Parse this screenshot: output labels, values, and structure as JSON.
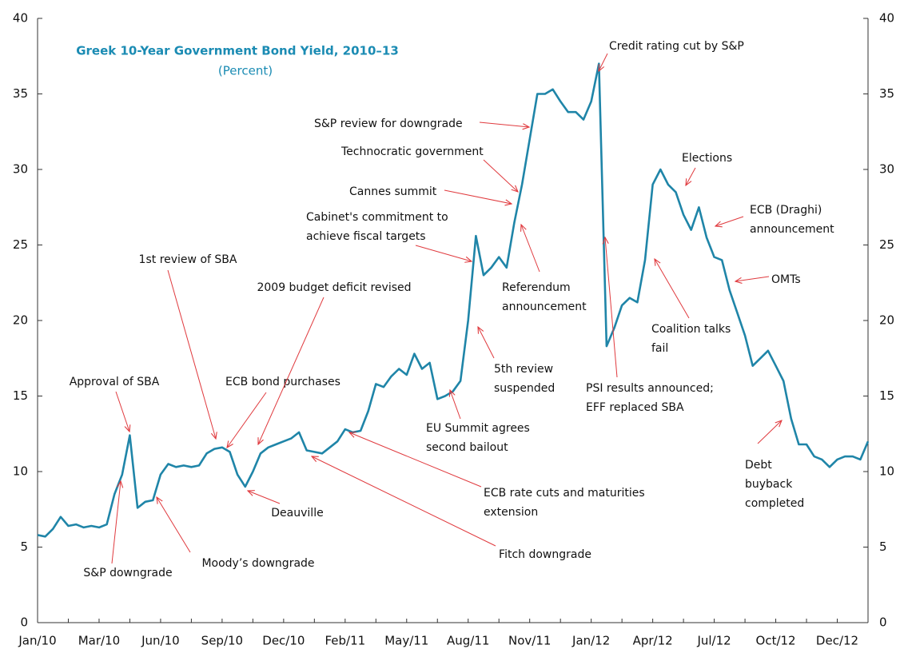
{
  "chart_data": {
    "type": "line",
    "title": "Greek 10-Year Government Bond Yield, 2010–13",
    "subtitle": "(Percent)",
    "categories": [
      "Jan/10",
      null,
      null,
      null,
      null,
      null,
      null,
      null,
      "Mar/10",
      null,
      null,
      null,
      null,
      null,
      null,
      null,
      "Jun/10",
      null,
      null,
      null,
      null,
      null,
      null,
      null,
      "Sep/10",
      null,
      null,
      null,
      null,
      null,
      null,
      null,
      "Dec/10",
      null,
      null,
      null,
      null,
      null,
      null,
      null,
      "Feb/11",
      null,
      null,
      null,
      null,
      null,
      null,
      null,
      "May/11",
      null,
      null,
      null,
      null,
      null,
      null,
      null,
      "Aug/11",
      null,
      null,
      null,
      null,
      null,
      null,
      null,
      "Nov/11",
      null,
      null,
      null,
      null,
      null,
      null,
      null,
      "Jan/12",
      null,
      null,
      null,
      null,
      null,
      null,
      null,
      "Apr/12",
      null,
      null,
      null,
      null,
      null,
      null,
      null,
      "Jul/12",
      null,
      null,
      null,
      null,
      null,
      null,
      null,
      "Oct/12",
      null,
      null,
      null,
      null,
      null,
      null,
      null,
      "Dec/12",
      null,
      null,
      null,
      null
    ],
    "series": [
      {
        "name": "Greek 10-year government bond yield",
        "color": "#1f85a8",
        "values": [
          5.8,
          5.7,
          6.2,
          7.0,
          6.4,
          6.5,
          6.3,
          6.4,
          6.3,
          6.5,
          8.5,
          9.8,
          12.4,
          7.6,
          8.0,
          8.1,
          9.8,
          10.5,
          10.3,
          10.4,
          10.3,
          10.4,
          11.2,
          11.5,
          11.6,
          11.3,
          9.8,
          9.0,
          10.0,
          11.2,
          11.6,
          11.8,
          12.0,
          12.2,
          12.6,
          11.4,
          11.3,
          11.2,
          11.6,
          12.0,
          12.8,
          12.6,
          12.7,
          14.0,
          15.8,
          15.6,
          16.3,
          16.8,
          16.4,
          17.8,
          16.8,
          17.2,
          14.8,
          15.0,
          15.3,
          16.0,
          20.0,
          25.6,
          23.0,
          23.5,
          24.2,
          23.5,
          26.5,
          29.0,
          32.0,
          35.0,
          35.0,
          35.3,
          34.5,
          33.8,
          33.8,
          33.3,
          34.5,
          37.0,
          18.3,
          19.5,
          21.0,
          21.5,
          21.2,
          24.0,
          29.0,
          30.0,
          29.0,
          28.5,
          27.0,
          26.0,
          27.5,
          25.5,
          24.2,
          24.0,
          22.0,
          20.5,
          19.0,
          17.0,
          17.5,
          18.0,
          17.0,
          16.0,
          13.5,
          11.8,
          11.8,
          11.0,
          10.8,
          10.3,
          10.8,
          11.0,
          11.0,
          10.8,
          12.0
        ]
      }
    ],
    "ylim": [
      0,
      40
    ],
    "yticks": [
      0,
      5,
      10,
      15,
      20,
      25,
      30,
      35,
      40
    ],
    "y2lim": [
      0,
      40
    ],
    "y2ticks": [
      0,
      5,
      10,
      15,
      20,
      25,
      30,
      35,
      40
    ],
    "grid": false,
    "annotations": [
      [
        "Approval of SBA"
      ],
      [
        "S&P downgrade"
      ],
      [
        "Moody’s downgrade"
      ],
      [
        "1st review of SBA"
      ],
      [
        "ECB bond purchases"
      ],
      [
        "2009 budget deficit revised"
      ],
      [
        "Deauville"
      ],
      [
        "Fitch downgrade"
      ],
      [
        "ECB rate cuts and  maturities",
        "extension"
      ],
      [
        "EU Summit agrees",
        "second bailout"
      ],
      [
        "5th review",
        "suspended"
      ],
      [
        "Cabinet's commitment to",
        "achieve fiscal targets"
      ],
      [
        "Cannes summit"
      ],
      [
        "Technocratic government"
      ],
      [
        "S&P review for downgrade"
      ],
      [
        "Referendum",
        "announcement"
      ],
      [
        "Credit rating cut by S&P"
      ],
      [
        "PSI results announced;",
        "EFF replaced SBA"
      ],
      [
        "Elections"
      ],
      [
        "Coalition talks",
        "fail"
      ],
      [
        "ECB (Draghi)",
        "announcement"
      ],
      [
        "OMTs"
      ],
      [
        "Debt",
        "buyback",
        "completed"
      ]
    ]
  }
}
